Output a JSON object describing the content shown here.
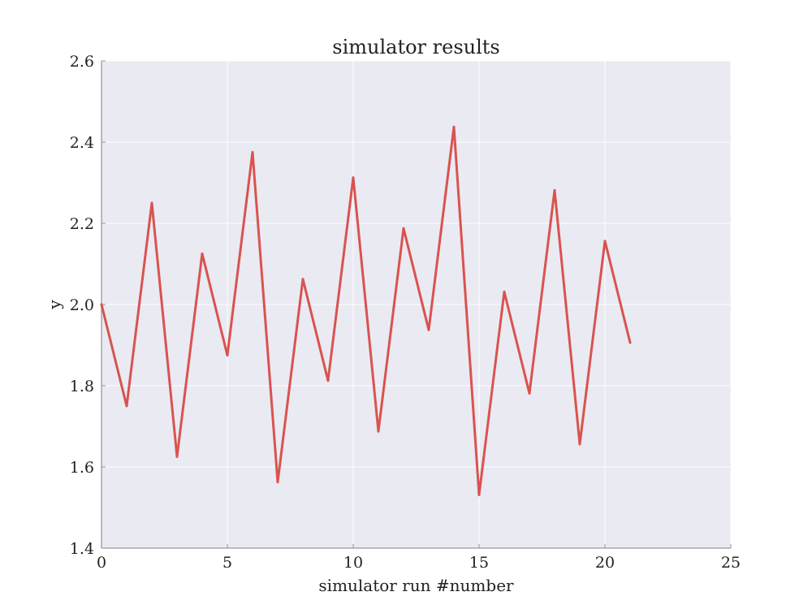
{
  "chart_data": {
    "type": "line",
    "title": "simulator results",
    "xlabel": "simulator run #number",
    "ylabel": "y",
    "xlim": [
      0,
      25
    ],
    "ylim": [
      1.4,
      2.6
    ],
    "xticks": [
      0,
      5,
      10,
      15,
      20,
      25
    ],
    "yticks": [
      1.4,
      1.6,
      1.8,
      2.0,
      2.2,
      2.4,
      2.6
    ],
    "xtick_labels": [
      "0",
      "5",
      "10",
      "15",
      "20",
      "25"
    ],
    "ytick_labels": [
      "1.4",
      "1.6",
      "1.8",
      "2.0",
      "2.2",
      "2.4",
      "2.6"
    ],
    "grid": true,
    "legend": "none",
    "colors": {
      "plot_background": "#eaeaf2",
      "grid": "#ffffff",
      "axis": "#999999",
      "series": "#d9534f"
    },
    "series": [
      {
        "x": [
          0,
          1,
          2,
          3,
          4,
          5,
          6,
          7,
          8,
          9,
          10,
          11,
          12,
          13,
          14,
          15,
          16,
          17,
          18,
          19,
          20,
          21
        ],
        "values": [
          2.0,
          1.75,
          2.25,
          1.625,
          2.125,
          1.875,
          2.375,
          1.5625,
          2.0625,
          1.8125,
          2.3125,
          1.6875,
          2.1875,
          1.9375,
          2.4375,
          1.53125,
          2.03125,
          1.78125,
          2.28125,
          1.65625,
          2.15625,
          1.90625
        ]
      }
    ]
  }
}
